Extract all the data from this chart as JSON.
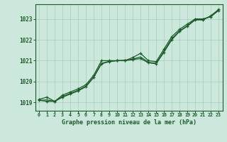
{
  "title": "Graphe pression niveau de la mer (hPa)",
  "bg_color": "#cce8dc",
  "grid_color": "#aaccbb",
  "line_color": "#1a5c28",
  "x_labels": [
    "0",
    "1",
    "2",
    "3",
    "4",
    "5",
    "6",
    "7",
    "8",
    "9",
    "10",
    "11",
    "12",
    "13",
    "14",
    "15",
    "16",
    "17",
    "18",
    "19",
    "20",
    "21",
    "22",
    "23"
  ],
  "ylim": [
    1018.6,
    1023.7
  ],
  "yticks": [
    1019,
    1020,
    1021,
    1022,
    1023
  ],
  "series1_x": [
    0,
    1,
    2,
    3,
    4,
    5,
    6,
    7,
    8,
    9,
    10,
    11,
    12,
    13,
    14,
    15,
    16,
    17,
    18,
    19,
    20,
    21,
    22,
    23
  ],
  "series1_y": [
    1019.15,
    1019.25,
    1019.05,
    1019.35,
    1019.5,
    1019.65,
    1019.85,
    1020.3,
    1021.0,
    1021.0,
    1021.0,
    1021.0,
    1021.15,
    1021.35,
    1021.0,
    1020.95,
    1021.55,
    1022.15,
    1022.5,
    1022.75,
    1023.0,
    1023.0,
    1023.1,
    1023.4
  ],
  "series2_x": [
    0,
    1,
    2,
    3,
    4,
    5,
    6,
    7,
    8,
    9,
    10,
    11,
    12,
    13,
    14,
    15,
    16,
    17,
    18,
    19,
    20,
    21,
    22,
    23
  ],
  "series2_y": [
    1019.1,
    1019.05,
    1019.05,
    1019.25,
    1019.4,
    1019.55,
    1019.75,
    1020.2,
    1020.85,
    1020.95,
    1021.0,
    1021.0,
    1021.05,
    1021.1,
    1020.9,
    1020.85,
    1021.4,
    1022.0,
    1022.4,
    1022.65,
    1022.95,
    1022.95,
    1023.15,
    1023.45
  ],
  "series3_x": [
    0,
    1,
    2,
    3,
    4,
    5,
    6,
    7,
    8,
    9,
    10,
    11,
    12,
    13,
    14,
    15,
    16,
    17,
    18,
    19,
    20,
    21,
    22,
    23
  ],
  "series3_y": [
    1019.1,
    1019.12,
    1019.05,
    1019.28,
    1019.43,
    1019.58,
    1019.78,
    1020.22,
    1020.87,
    1020.97,
    1021.0,
    1021.02,
    1021.07,
    1021.18,
    1020.92,
    1020.87,
    1021.45,
    1022.05,
    1022.42,
    1022.67,
    1022.97,
    1022.97,
    1023.12,
    1023.42
  ]
}
